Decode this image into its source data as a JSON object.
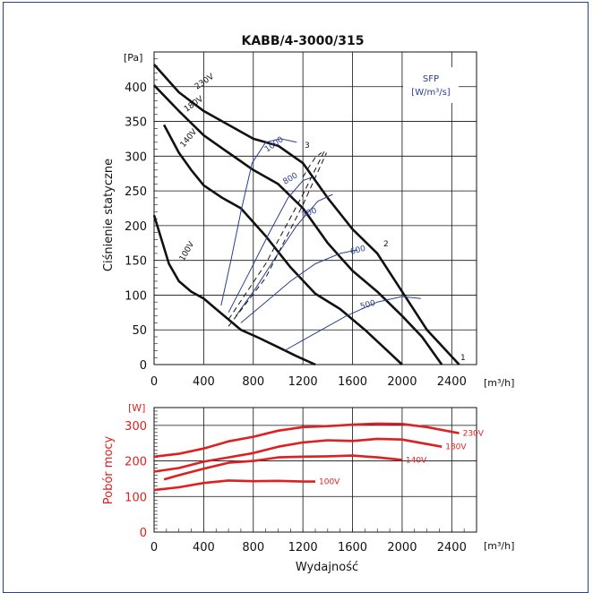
{
  "chart_data": [
    {
      "type": "line",
      "title": "KABB/4-3000/315",
      "ylabel": "Ciśnienie statyczne",
      "y_unit": "[Pa]",
      "x_unit": "[m³/h]",
      "xlim": [
        0,
        2600
      ],
      "ylim": [
        0,
        450
      ],
      "x_ticks": [
        "0",
        "400",
        "800",
        "1200",
        "1600",
        "2000",
        "2400"
      ],
      "y_ticks": [
        "0",
        "50",
        "100",
        "150",
        "200",
        "250",
        "300",
        "350",
        "400"
      ],
      "grid": true,
      "series": [
        {
          "name": "230V",
          "color": "#111111",
          "x": [
            0,
            200,
            400,
            600,
            800,
            1000,
            1200,
            1400,
            1600,
            1800,
            2000,
            2200,
            2460
          ],
          "y": [
            432,
            392,
            365,
            345,
            325,
            315,
            290,
            240,
            195,
            160,
            105,
            50,
            0
          ]
        },
        {
          "name": "180V",
          "color": "#111111",
          "x": [
            0,
            200,
            400,
            600,
            800,
            1000,
            1200,
            1400,
            1600,
            1800,
            2000,
            2160,
            2320
          ],
          "y": [
            402,
            365,
            330,
            305,
            280,
            260,
            225,
            175,
            135,
            105,
            70,
            40,
            0
          ]
        },
        {
          "name": "140V",
          "color": "#111111",
          "x": [
            80,
            200,
            300,
            400,
            550,
            700,
            900,
            1100,
            1300,
            1500,
            1700,
            1850,
            2000
          ],
          "y": [
            345,
            305,
            280,
            258,
            240,
            225,
            185,
            140,
            102,
            80,
            50,
            25,
            0
          ]
        },
        {
          "name": "100V",
          "color": "#111111",
          "x": [
            0,
            60,
            120,
            200,
            300,
            400,
            500,
            600,
            700,
            850,
            1000,
            1150,
            1300
          ],
          "y": [
            215,
            180,
            145,
            120,
            105,
            95,
            80,
            65,
            50,
            38,
            25,
            12,
            0
          ]
        }
      ],
      "sfp_title": [
        "SFP",
        "[W/m³/s]"
      ],
      "sfp_labels": [
        "1000",
        "800",
        "700",
        "600",
        "500"
      ],
      "sfp_series": [
        {
          "name": "1000",
          "x": [
            540,
            620,
            700,
            790,
            900,
            1020,
            1150
          ],
          "y": [
            85,
            150,
            220,
            290,
            320,
            325,
            320
          ]
        },
        {
          "name": "800",
          "x": [
            600,
            760,
            930,
            1080,
            1200,
            1280
          ],
          "y": [
            75,
            130,
            190,
            240,
            265,
            270
          ]
        },
        {
          "name": "700",
          "x": [
            660,
            820,
            1000,
            1150,
            1320,
            1440
          ],
          "y": [
            70,
            110,
            160,
            200,
            235,
            245
          ]
        },
        {
          "name": "600",
          "x": [
            700,
            900,
            1100,
            1300,
            1500,
            1640
          ],
          "y": [
            60,
            90,
            120,
            145,
            160,
            165
          ]
        },
        {
          "name": "500",
          "x": [
            1050,
            1300,
            1550,
            1800,
            2000,
            2150
          ],
          "y": [
            20,
            45,
            70,
            90,
            98,
            95
          ]
        }
      ],
      "system_curves": [
        {
          "name": "1",
          "x": [
            600,
            900,
            1200,
            1380
          ],
          "y": [
            65,
            145,
            245,
            310
          ]
        },
        {
          "name": "2",
          "x": [
            600,
            900,
            1200,
            1390
          ],
          "y": [
            55,
            125,
            230,
            305
          ]
        },
        {
          "name": "3",
          "x": [
            1200,
            1250,
            1300,
            1350
          ],
          "y": [
            270,
            285,
            298,
            305
          ]
        }
      ],
      "point_labels": [
        "1",
        "2",
        "3"
      ]
    },
    {
      "type": "line",
      "xlabel": "Wydajność",
      "ylabel": "Pobór mocy",
      "y_unit": "[W]",
      "x_unit": "[m³/h]",
      "xlim": [
        0,
        2600
      ],
      "ylim": [
        0,
        350
      ],
      "x_ticks": [
        "0",
        "400",
        "800",
        "1200",
        "1600",
        "2000",
        "2400"
      ],
      "y_ticks": [
        "0",
        "100",
        "200",
        "300"
      ],
      "grid": true,
      "series": [
        {
          "name": "230V",
          "color": "#e02020",
          "x": [
            0,
            200,
            400,
            600,
            800,
            1000,
            1200,
            1400,
            1600,
            1800,
            2000,
            2200,
            2460
          ],
          "y": [
            212,
            220,
            235,
            255,
            268,
            285,
            295,
            298,
            302,
            305,
            304,
            295,
            278
          ]
        },
        {
          "name": "180V",
          "color": "#e02020",
          "x": [
            0,
            200,
            400,
            600,
            800,
            1000,
            1200,
            1400,
            1600,
            1800,
            2000,
            2320
          ],
          "y": [
            170,
            180,
            198,
            210,
            222,
            240,
            252,
            258,
            256,
            262,
            260,
            240
          ]
        },
        {
          "name": "140V",
          "color": "#e02020",
          "x": [
            80,
            200,
            400,
            600,
            800,
            1000,
            1200,
            1400,
            1600,
            1800,
            2000
          ],
          "y": [
            148,
            160,
            178,
            195,
            200,
            210,
            212,
            213,
            215,
            210,
            203
          ]
        },
        {
          "name": "100V",
          "color": "#e02020",
          "x": [
            0,
            200,
            400,
            600,
            800,
            1000,
            1200,
            1300
          ],
          "y": [
            118,
            126,
            138,
            145,
            143,
            144,
            142,
            142
          ]
        }
      ]
    }
  ]
}
